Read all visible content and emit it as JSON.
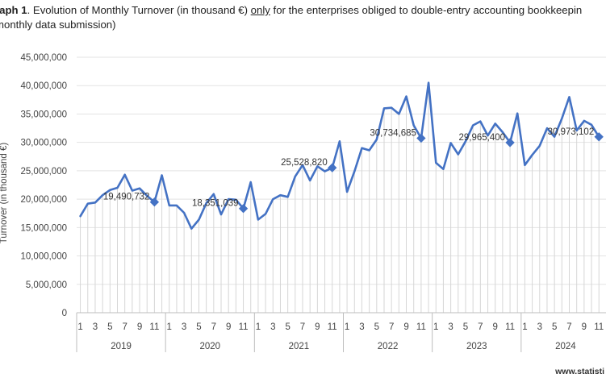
{
  "title": {
    "prefix": "raph 1",
    "text_before_underline": ". Evolution of Monthly Turnover (in thousand €) ",
    "underlined": "only",
    "text_after_underline": " for the enterprises obliged to double-entry accounting bookkeepin",
    "line2": "monthly data submission)"
  },
  "source": "www.statisti",
  "chart_data": {
    "type": "line",
    "ylabel": "Turnover (in thousand €)",
    "ylim": [
      0,
      45000000
    ],
    "yticks": [
      "0",
      "5,000,000",
      "10,000,000",
      "15,000,000",
      "20,000,000",
      "25,000,000",
      "30,000,000",
      "35,000,000",
      "40,000,000",
      "45,000,000"
    ],
    "years": [
      "2019",
      "2020",
      "2021",
      "2022",
      "2023",
      "2024"
    ],
    "month_tick_labels": [
      "1",
      "3",
      "5",
      "7",
      "9",
      "11"
    ],
    "values": [
      17000000,
      19200000,
      19400000,
      20700000,
      21600000,
      22000000,
      24300000,
      21500000,
      21900000,
      20600000,
      19490732,
      24200000,
      18900000,
      18900000,
      17600000,
      14800000,
      16400000,
      19300000,
      20900000,
      17300000,
      20000000,
      19900000,
      18351039,
      23000000,
      16400000,
      17400000,
      20000000,
      20700000,
      20400000,
      24000000,
      26000000,
      23300000,
      25800000,
      24900000,
      25528820,
      30200000,
      21300000,
      24900000,
      29000000,
      28600000,
      30500000,
      36000000,
      36100000,
      35000000,
      38100000,
      33000000,
      30734685,
      40500000,
      26400000,
      25300000,
      29900000,
      27900000,
      30200000,
      33000000,
      33700000,
      31200000,
      33300000,
      31800000,
      29965400,
      35100000,
      26000000,
      27800000,
      29400000,
      32500000,
      31000000,
      34200000,
      38000000,
      32100000,
      33800000,
      33100000,
      30973102
    ],
    "series_color": "#4472C4",
    "annotations": [
      {
        "index": 10,
        "text": "19,490,732"
      },
      {
        "index": 22,
        "text": "18,351,039"
      },
      {
        "index": 34,
        "text": "25,528,820"
      },
      {
        "index": 46,
        "text": "30,734,685"
      },
      {
        "index": 58,
        "text": "29,965,400"
      },
      {
        "index": 70,
        "text": "30,973,102"
      }
    ]
  }
}
